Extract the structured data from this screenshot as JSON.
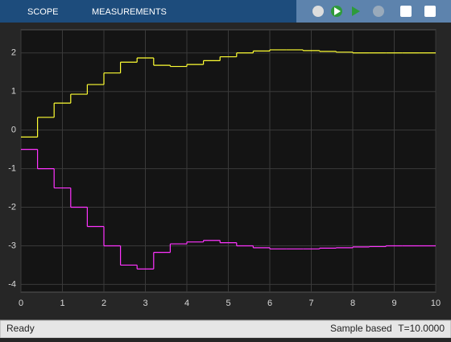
{
  "toolbar": {
    "tabs": [
      "SCOPE",
      "MEASUREMENTS"
    ]
  },
  "chart_data": {
    "type": "step",
    "x": [
      0,
      0.4,
      0.8,
      1.2,
      1.6,
      2,
      2.4,
      2.8,
      3.2,
      3.6,
      4,
      4.4,
      4.8,
      5.2,
      5.6,
      6,
      6.4,
      6.8,
      7.2,
      7.6,
      8,
      8.4,
      8.8,
      9.2,
      9.6,
      10
    ],
    "series": [
      {
        "color": "#ffff33",
        "values": [
          -0.18,
          0.33,
          0.7,
          0.93,
          1.18,
          1.48,
          1.76,
          1.87,
          1.68,
          1.65,
          1.7,
          1.8,
          1.9,
          2.0,
          2.05,
          2.08,
          2.08,
          2.06,
          2.04,
          2.02,
          2.0,
          2.0,
          2.0,
          2.0,
          2.0,
          2.0
        ]
      },
      {
        "color": "#ff33ff",
        "values": [
          -0.5,
          -1,
          -1.5,
          -2,
          -2.5,
          -3,
          -3.5,
          -3.6,
          -3.17,
          -2.95,
          -2.9,
          -2.86,
          -2.92,
          -3.0,
          -3.05,
          -3.08,
          -3.08,
          -3.08,
          -3.06,
          -3.05,
          -3.03,
          -3.02,
          -3.0,
          -3.0,
          -3.0,
          -3.0
        ]
      }
    ],
    "xlim": [
      0,
      10
    ],
    "xticks": [
      0,
      1,
      2,
      3,
      4,
      5,
      6,
      7,
      8,
      9,
      10
    ],
    "ylim": [
      -4.2,
      2.6
    ],
    "yticks": [
      -4,
      -3,
      -2,
      -1,
      0,
      1,
      2
    ],
    "grid": true
  },
  "status": {
    "left": "Ready",
    "mode": "Sample based",
    "time": "T=10.0000"
  }
}
